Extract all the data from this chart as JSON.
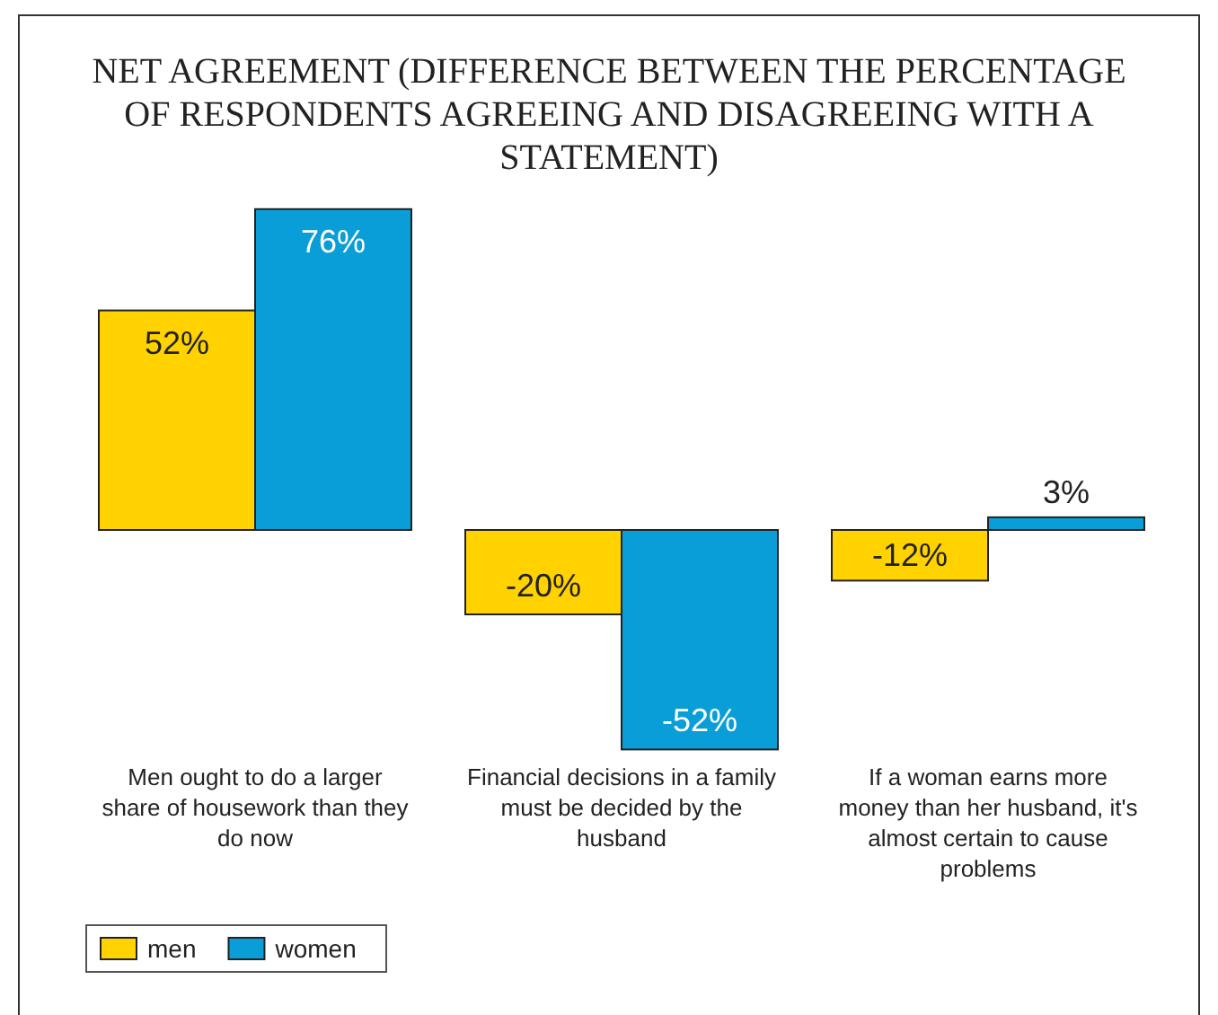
{
  "chart_data": {
    "type": "bar",
    "title": "NET AGREEMENT (DIFFERENCE BETWEEN THE PERCENTAGE OF RESPONDENTS AGREEING AND DISAGREEING WITH A STATEMENT)",
    "categories": [
      "Men ought to do a larger share of housework than they do now",
      "Financial decisions in a family must be decided by the husband",
      "If a woman earns more money than her husband, it's almost certain to cause problems"
    ],
    "series": [
      {
        "name": "men",
        "color": "#ffd200",
        "values": [
          52,
          -20,
          -12
        ],
        "value_labels": [
          "52%",
          "-20%",
          "-12%"
        ]
      },
      {
        "name": "women",
        "color": "#0a9ed8",
        "values": [
          76,
          -52,
          3
        ],
        "value_labels": [
          "76%",
          "-52%",
          "3%"
        ]
      }
    ],
    "legend": "bottom left"
  }
}
